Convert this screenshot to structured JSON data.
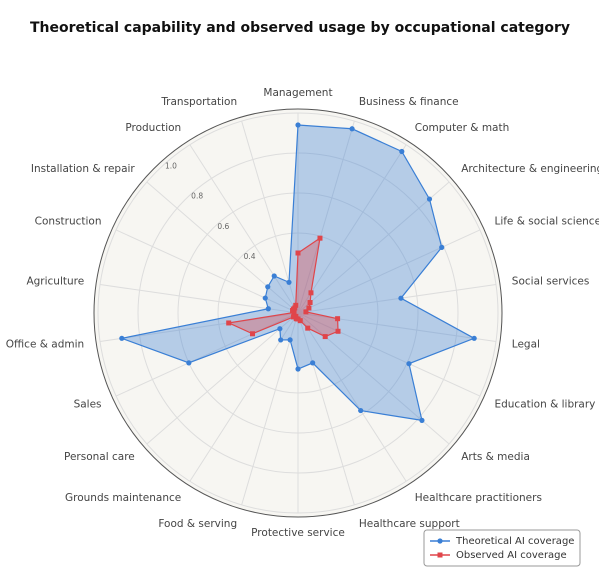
{
  "chart_data": {
    "type": "radar",
    "title": "Theoretical capability and observed usage by occupational category",
    "categories": [
      "Management",
      "Business & finance",
      "Computer & math",
      "Architecture & engineering",
      "Life & social sciences",
      "Social services",
      "Legal",
      "Education & library",
      "Arts & media",
      "Healthcare practitioners",
      "Healthcare support",
      "Protective service",
      "Food & serving",
      "Grounds maintenance",
      "Personal care",
      "Sales",
      "Office & admin",
      "Agriculture",
      "Construction",
      "Installation & repair",
      "Production",
      "Transportation"
    ],
    "series": [
      {
        "name": "Theoretical AI coverage",
        "color": "#3a7fd5",
        "marker": "circle",
        "values": [
          0.94,
          0.96,
          0.96,
          0.87,
          0.79,
          0.52,
          0.89,
          0.61,
          0.82,
          0.58,
          0.26,
          0.28,
          0.14,
          0.16,
          0.12,
          0.6,
          0.89,
          0.15,
          0.18,
          0.2,
          0.22,
          0.16
        ]
      },
      {
        "name": "Observed AI coverage",
        "color": "#e0454a",
        "marker": "square",
        "values": [
          0.3,
          0.39,
          0.12,
          0.08,
          0.06,
          0.04,
          0.2,
          0.22,
          0.18,
          0.09,
          0.04,
          0.03,
          0.03,
          0.02,
          0.03,
          0.25,
          0.35,
          0.02,
          0.03,
          0.03,
          0.03,
          0.04
        ]
      }
    ],
    "rlim": [
      0,
      1.0
    ],
    "rticks": [
      0.4,
      0.6,
      0.8,
      {
        "value": 1.0,
        "label": "1.0"
      }
    ],
    "legend": "lower right"
  }
}
